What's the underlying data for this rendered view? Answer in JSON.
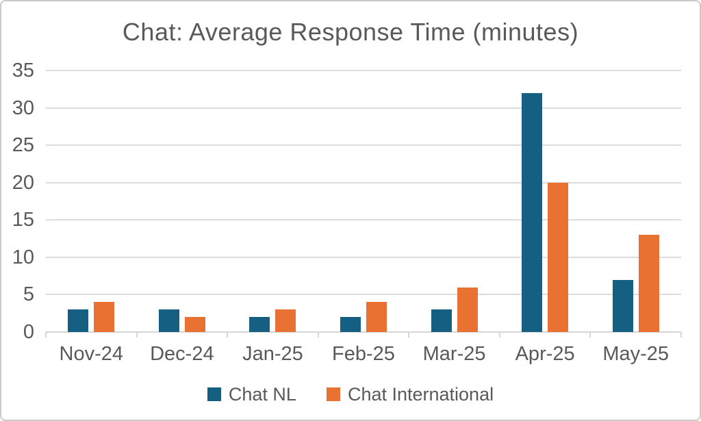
{
  "frame": {
    "background": "#ffffff",
    "border_color": "#c9c9c9"
  },
  "text_color": "#595959",
  "gridline_color": "#dcdcdc",
  "chart_data": {
    "type": "bar",
    "title": "Chat: Average Response Time (minutes)",
    "categories": [
      "Nov-24",
      "Dec-24",
      "Jan-25",
      "Feb-25",
      "Mar-25",
      "Apr-25",
      "May-25"
    ],
    "series": [
      {
        "name": "Chat NL",
        "color": "#156082",
        "values": [
          3,
          3,
          2,
          2,
          3,
          32,
          7
        ]
      },
      {
        "name": "Chat International",
        "color": "#E97132",
        "values": [
          4,
          2,
          3,
          4,
          6,
          20,
          13
        ]
      }
    ],
    "xlabel": "",
    "ylabel": "",
    "ylim": [
      0,
      35
    ],
    "yticks": [
      0,
      5,
      10,
      15,
      20,
      25,
      30,
      35
    ],
    "grid": true,
    "legend_position": "bottom"
  }
}
